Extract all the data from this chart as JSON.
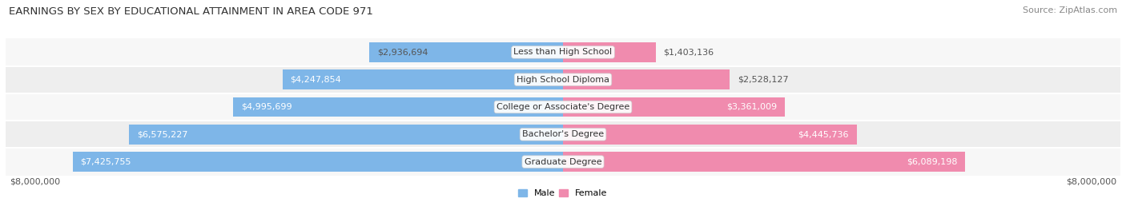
{
  "title": "EARNINGS BY SEX BY EDUCATIONAL ATTAINMENT IN AREA CODE 971",
  "source": "Source: ZipAtlas.com",
  "categories": [
    "Less than High School",
    "High School Diploma",
    "College or Associate's Degree",
    "Bachelor's Degree",
    "Graduate Degree"
  ],
  "male_values": [
    2936694,
    4247854,
    4995699,
    6575227,
    7425755
  ],
  "female_values": [
    1403136,
    2528127,
    3361009,
    4445736,
    6089198
  ],
  "male_labels": [
    "$2,936,694",
    "$4,247,854",
    "$4,995,699",
    "$6,575,227",
    "$7,425,755"
  ],
  "female_labels": [
    "$1,403,136",
    "$2,528,127",
    "$3,361,009",
    "$4,445,736",
    "$6,089,198"
  ],
  "male_color": "#7EB6E8",
  "female_color": "#F08BAE",
  "axis_limit": 8000000,
  "x_tick_left": "$8,000,000",
  "x_tick_right": "$8,000,000",
  "title_fontsize": 9.5,
  "source_fontsize": 8,
  "label_fontsize": 8,
  "tick_fontsize": 8,
  "legend_fontsize": 8,
  "bar_height": 0.72,
  "row_bg_even": "#F7F7F7",
  "row_bg_odd": "#EEEEEE",
  "white_label_threshold_male": 3500000,
  "white_label_threshold_female": 3000000
}
